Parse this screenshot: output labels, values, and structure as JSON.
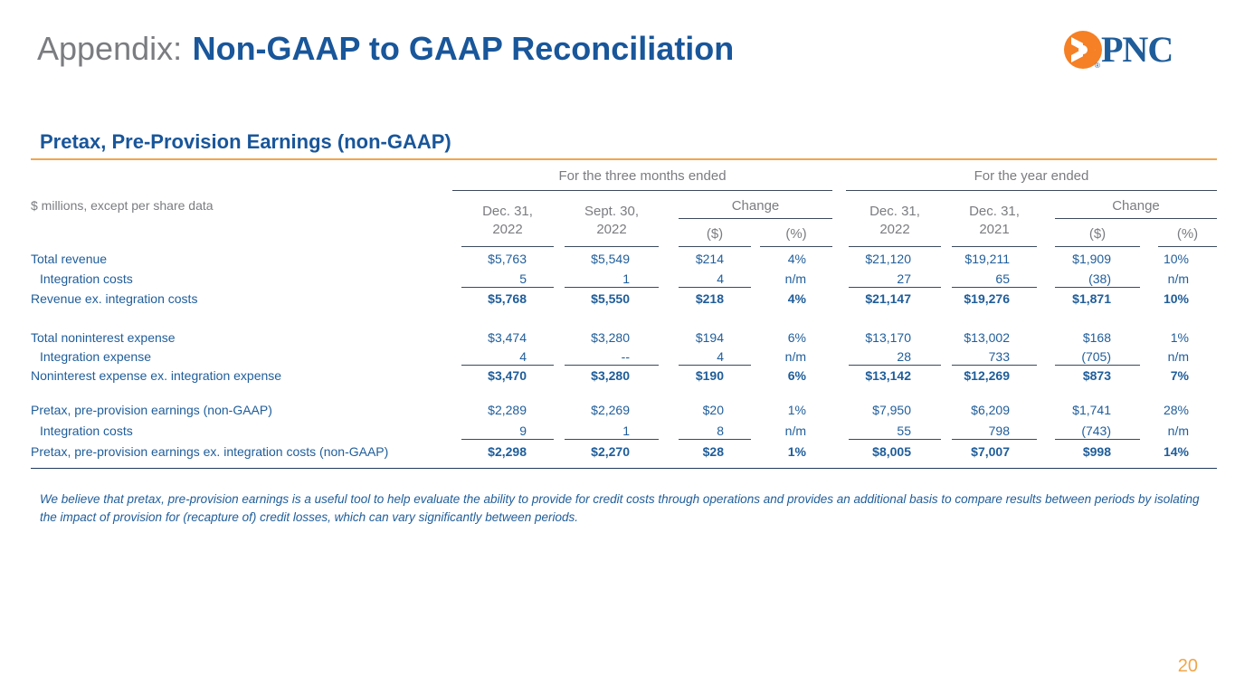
{
  "slide": {
    "title_prefix": "Appendix:",
    "title_main": "Non-GAAP to GAAP Reconciliation",
    "section_title": "Pretax, Pre-Provision Earnings (non-GAAP)",
    "page_number": "20",
    "footnote": "We believe that pretax, pre-provision earnings is a useful tool to help evaluate the ability to provide for credit costs through operations and provides an additional basis to compare results between periods by isolating the impact of provision for (recapture of) credit losses, which can vary significantly between periods."
  },
  "logo": {
    "text": "PNC",
    "registered": "®",
    "colors": {
      "mark": "#f58025",
      "text": "#1f5d9a"
    }
  },
  "table": {
    "group_headers": {
      "three_months": "For the three months ended",
      "year": "For the year ended"
    },
    "units_label": "$ millions, except per share data",
    "columns": {
      "q4_2022": {
        "line1": "Dec. 31,",
        "line2": "2022"
      },
      "q3_2022": {
        "line1": "Sept. 30,",
        "line2": "2022"
      },
      "q_change": "Change",
      "q_change_dollar": "($)",
      "q_change_pct": "(%)",
      "fy_2022": {
        "line1": "Dec. 31,",
        "line2": "2022"
      },
      "fy_2021": {
        "line1": "Dec. 31,",
        "line2": "2021"
      },
      "fy_change": "Change",
      "fy_change_dollar": "($)",
      "fy_change_pct": "(%)"
    },
    "rows": [
      {
        "label": "Total revenue",
        "indent": false,
        "bold": false,
        "values": [
          "$5,763",
          "$5,549",
          "$214",
          "4%",
          "$21,120",
          "$19,211",
          "$1,909",
          "10%"
        ]
      },
      {
        "label": "Integration costs",
        "indent": true,
        "bold": false,
        "values": [
          "5",
          "1",
          "4",
          "n/m",
          "27",
          "65",
          "(38)",
          "n/m"
        ]
      },
      {
        "label": "Revenue ex. integration costs",
        "indent": false,
        "bold": true,
        "values": [
          "$5,768",
          "$5,550",
          "$218",
          "4%",
          "$21,147",
          "$19,276",
          "$1,871",
          "10%"
        ]
      },
      {
        "label": "Total noninterest expense",
        "indent": false,
        "bold": false,
        "values": [
          "$3,474",
          "$3,280",
          "$194",
          "6%",
          "$13,170",
          "$13,002",
          "$168",
          "1%"
        ]
      },
      {
        "label": "Integration expense",
        "indent": true,
        "bold": false,
        "values": [
          "4",
          "--",
          "4",
          "n/m",
          "28",
          "733",
          "(705)",
          "n/m"
        ]
      },
      {
        "label": "Noninterest expense ex. integration expense",
        "indent": false,
        "bold": true,
        "values": [
          "$3,470",
          "$3,280",
          "$190",
          "6%",
          "$13,142",
          "$12,269",
          "$873",
          "7%"
        ]
      },
      {
        "label": "Pretax, pre-provision earnings (non-GAAP)",
        "indent": false,
        "bold": false,
        "values": [
          "$2,289",
          "$2,269",
          "$20",
          "1%",
          "$7,950",
          "$6,209",
          "$1,741",
          "28%"
        ]
      },
      {
        "label": "Integration costs",
        "indent": true,
        "bold": false,
        "values": [
          "9",
          "1",
          "8",
          "n/m",
          "55",
          "798",
          "(743)",
          "n/m"
        ]
      },
      {
        "label": "Pretax, pre-provision earnings ex. integration costs  (non-GAAP)",
        "indent": false,
        "bold": true,
        "values": [
          "$2,298",
          "$2,270",
          "$28",
          "1%",
          "$8,005",
          "$7,007",
          "$998",
          "14%"
        ]
      }
    ]
  }
}
